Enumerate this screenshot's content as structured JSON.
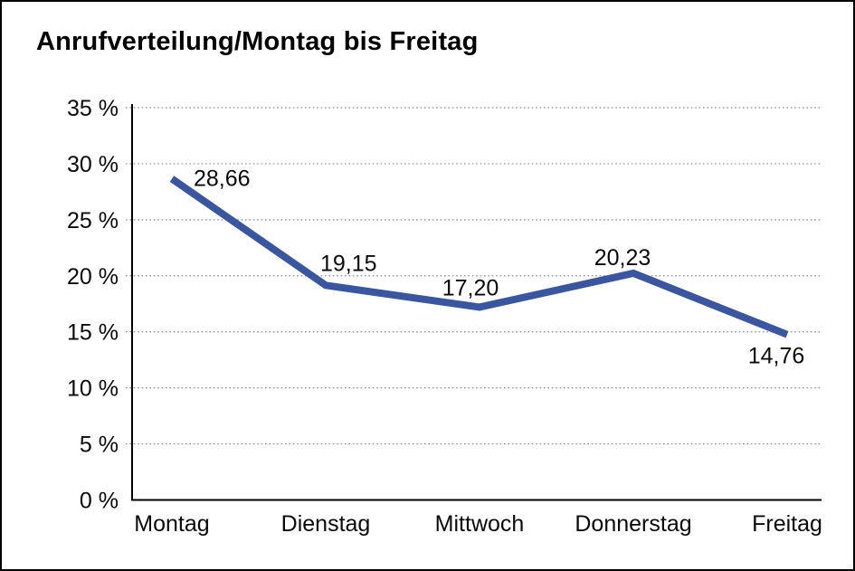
{
  "chart_data": {
    "type": "line",
    "title": "Anrufverteilung/Montag bis Freitag",
    "categories": [
      "Montag",
      "Dienstag",
      "Mittwoch",
      "Donnerstag",
      "Freitag"
    ],
    "values": [
      28.66,
      19.15,
      17.2,
      20.23,
      14.76
    ],
    "point_labels": [
      "28,66",
      "19,15",
      "17,20",
      "20,23",
      "14,76"
    ],
    "y_ticks": [
      "0 %",
      "5 %",
      "10 %",
      "15 %",
      "20 %",
      "25 %",
      "30 %",
      "35 %"
    ],
    "ylim": [
      0,
      35
    ],
    "y_tick_step": 5,
    "xlabel": "",
    "ylabel": "",
    "grid": "horizontal-dotted",
    "legend": "none",
    "line_color": "#3A56A0",
    "axis_color": "#000000",
    "label_decimal_separator": ","
  }
}
